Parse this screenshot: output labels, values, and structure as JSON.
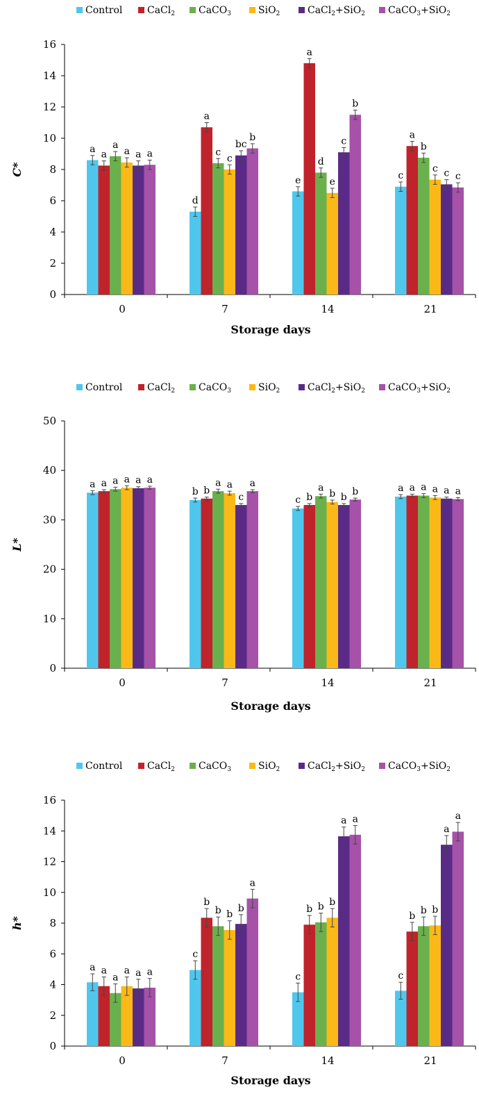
{
  "colors": {
    "Control": "#4fc7ed",
    "CaCl2": "#c0232b",
    "CaCO3": "#6ab04c",
    "SiO2": "#fbb917",
    "CaCl2+SiO2": "#5a2b86",
    "CaCO3+SiO2": "#a552a8"
  },
  "legend_items": [
    {
      "key": "Control",
      "base": "Control",
      "parts": [
        {
          "t": "Control",
          "sub": false
        }
      ]
    },
    {
      "key": "CaCl2",
      "parts": [
        {
          "t": "CaCl",
          "sub": false
        },
        {
          "t": "2",
          "sub": true
        }
      ]
    },
    {
      "key": "CaCO3",
      "parts": [
        {
          "t": "CaCO",
          "sub": false
        },
        {
          "t": "3",
          "sub": true
        }
      ]
    },
    {
      "key": "SiO2",
      "parts": [
        {
          "t": "SiO",
          "sub": false
        },
        {
          "t": "2",
          "sub": true
        }
      ]
    },
    {
      "key": "CaCl2+SiO2",
      "parts": [
        {
          "t": "CaCl",
          "sub": false
        },
        {
          "t": "2",
          "sub": true
        },
        {
          "t": "+SiO",
          "sub": false
        },
        {
          "t": "2",
          "sub": true
        }
      ]
    },
    {
      "key": "CaCO3+SiO2",
      "parts": [
        {
          "t": "CaCO",
          "sub": false
        },
        {
          "t": "3",
          "sub": true
        },
        {
          "t": "+SiO",
          "sub": false
        },
        {
          "t": "2",
          "sub": true
        }
      ]
    }
  ],
  "chart_data": [
    {
      "type": "bar",
      "ylabel": "C*",
      "xlabel": "Storage days",
      "categories": [
        "0",
        "7",
        "14",
        "21"
      ],
      "ylim": [
        0,
        16
      ],
      "yticks": [
        0,
        2,
        4,
        6,
        8,
        10,
        12,
        14,
        16
      ],
      "grid": false,
      "legend": "top",
      "series": [
        {
          "name": "Control",
          "values": [
            8.6,
            5.3,
            6.6,
            6.9
          ],
          "errors": [
            0.3,
            0.3,
            0.3,
            0.3
          ],
          "letters": [
            "a",
            "d",
            "e",
            "c"
          ]
        },
        {
          "name": "CaCl2",
          "values": [
            8.25,
            10.7,
            14.8,
            9.5
          ],
          "errors": [
            0.3,
            0.3,
            0.3,
            0.3
          ],
          "letters": [
            "a",
            "a",
            "a",
            "a"
          ]
        },
        {
          "name": "CaCO3",
          "values": [
            8.85,
            8.4,
            7.8,
            8.75
          ],
          "errors": [
            0.3,
            0.3,
            0.3,
            0.3
          ],
          "letters": [
            "a",
            "c",
            "d",
            "b"
          ]
        },
        {
          "name": "SiO2",
          "values": [
            8.45,
            8.0,
            6.5,
            7.35
          ],
          "errors": [
            0.3,
            0.3,
            0.3,
            0.3
          ],
          "letters": [
            "a",
            "c",
            "e",
            "c"
          ]
        },
        {
          "name": "CaCl2+SiO2",
          "values": [
            8.25,
            8.9,
            9.1,
            7.05
          ],
          "errors": [
            0.3,
            0.3,
            0.3,
            0.3
          ],
          "letters": [
            "a",
            "bc",
            "c",
            "c"
          ]
        },
        {
          "name": "CaCO3+SiO2",
          "values": [
            8.3,
            9.35,
            11.5,
            6.85
          ],
          "errors": [
            0.3,
            0.3,
            0.3,
            0.3
          ],
          "letters": [
            "a",
            "b",
            "b",
            "c"
          ]
        }
      ]
    },
    {
      "type": "bar",
      "ylabel": "L*",
      "xlabel": "Storage days",
      "categories": [
        "0",
        "7",
        "14",
        "21"
      ],
      "ylim": [
        0,
        50
      ],
      "yticks": [
        0,
        10,
        20,
        30,
        40,
        50
      ],
      "grid": false,
      "legend": "top",
      "series": [
        {
          "name": "Control",
          "values": [
            35.5,
            34.0,
            32.3,
            34.7
          ],
          "errors": [
            0.4,
            0.4,
            0.4,
            0.4
          ],
          "letters": [
            "a",
            "b",
            "c",
            "a"
          ]
        },
        {
          "name": "CaCl2",
          "values": [
            35.8,
            34.3,
            33.0,
            34.9
          ],
          "errors": [
            0.3,
            0.3,
            0.3,
            0.3
          ],
          "letters": [
            "a",
            "b",
            "b",
            "a"
          ]
        },
        {
          "name": "CaCO3",
          "values": [
            36.2,
            35.8,
            34.8,
            34.9
          ],
          "errors": [
            0.4,
            0.4,
            0.4,
            0.4
          ],
          "letters": [
            "a",
            "a",
            "a",
            "a"
          ]
        },
        {
          "name": "SiO2",
          "values": [
            36.5,
            35.4,
            33.6,
            34.5
          ],
          "errors": [
            0.4,
            0.4,
            0.4,
            0.4
          ],
          "letters": [
            "a",
            "a",
            "b",
            "a"
          ]
        },
        {
          "name": "CaCl2+SiO2",
          "values": [
            36.4,
            33.0,
            33.0,
            34.3
          ],
          "errors": [
            0.3,
            0.3,
            0.3,
            0.3
          ],
          "letters": [
            "a",
            "c",
            "b",
            "a"
          ]
        },
        {
          "name": "CaCO3+SiO2",
          "values": [
            36.5,
            35.8,
            34.1,
            34.2
          ],
          "errors": [
            0.3,
            0.3,
            0.3,
            0.3
          ],
          "letters": [
            "a",
            "a",
            "b",
            "a"
          ]
        }
      ]
    },
    {
      "type": "bar",
      "ylabel": "h*",
      "xlabel": "Storage days",
      "categories": [
        "0",
        "7",
        "14",
        "21"
      ],
      "ylim": [
        0,
        16
      ],
      "yticks": [
        0,
        2,
        4,
        6,
        8,
        10,
        12,
        14,
        16
      ],
      "grid": false,
      "legend": "top",
      "series": [
        {
          "name": "Control",
          "values": [
            4.15,
            4.95,
            3.5,
            3.6
          ],
          "errors": [
            0.55,
            0.6,
            0.6,
            0.55
          ],
          "letters": [
            "a",
            "c",
            "c",
            "c"
          ]
        },
        {
          "name": "CaCl2",
          "values": [
            3.9,
            8.35,
            7.9,
            7.45
          ],
          "errors": [
            0.6,
            0.6,
            0.6,
            0.6
          ],
          "letters": [
            "a",
            "b",
            "b",
            "b"
          ]
        },
        {
          "name": "CaCO3",
          "values": [
            3.45,
            7.8,
            8.05,
            7.8
          ],
          "errors": [
            0.6,
            0.6,
            0.6,
            0.6
          ],
          "letters": [
            "a",
            "b",
            "b",
            "b"
          ]
        },
        {
          "name": "SiO2",
          "values": [
            3.9,
            7.55,
            8.35,
            7.85
          ],
          "errors": [
            0.6,
            0.6,
            0.6,
            0.6
          ],
          "letters": [
            "a",
            "b",
            "b",
            "b"
          ]
        },
        {
          "name": "CaCl2+SiO2",
          "values": [
            3.75,
            7.95,
            13.65,
            13.1
          ],
          "errors": [
            0.6,
            0.6,
            0.6,
            0.6
          ],
          "letters": [
            "a",
            "b",
            "a",
            "a"
          ]
        },
        {
          "name": "CaCO3+SiO2",
          "values": [
            3.8,
            9.6,
            13.75,
            13.95
          ],
          "errors": [
            0.6,
            0.6,
            0.6,
            0.6
          ],
          "letters": [
            "a",
            "a",
            "a",
            "a"
          ]
        }
      ]
    }
  ]
}
